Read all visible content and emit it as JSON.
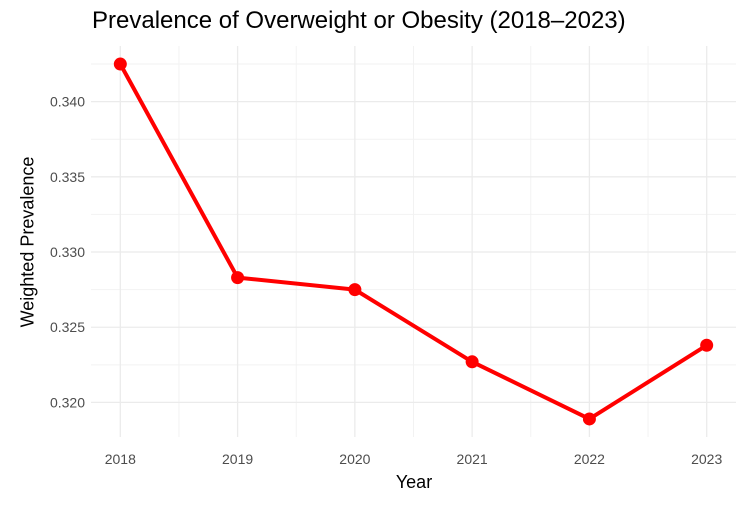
{
  "chart_data": {
    "type": "line",
    "title": "Prevalence of Overweight or Obesity (2018–2023)",
    "xlabel": "Year",
    "ylabel": "Weighted Prevalence",
    "x": [
      2018,
      2019,
      2020,
      2021,
      2022,
      2023
    ],
    "x_tick_labels": [
      "2018",
      "2019",
      "2020",
      "2021",
      "2022",
      "2023"
    ],
    "series": [
      {
        "values": [
          0.3425,
          0.3283,
          0.3275,
          0.3227,
          0.3189,
          0.3238
        ],
        "color": "#ff0000"
      }
    ],
    "y_ticks": [
      0.32,
      0.325,
      0.33,
      0.335,
      0.34
    ],
    "y_tick_labels": [
      "0.320",
      "0.325",
      "0.330",
      "0.335",
      "0.340"
    ],
    "ylim": [
      0.3177,
      0.3437
    ],
    "xlim": [
      2017.75,
      2023.25
    ],
    "grid": true,
    "legend": "none"
  }
}
